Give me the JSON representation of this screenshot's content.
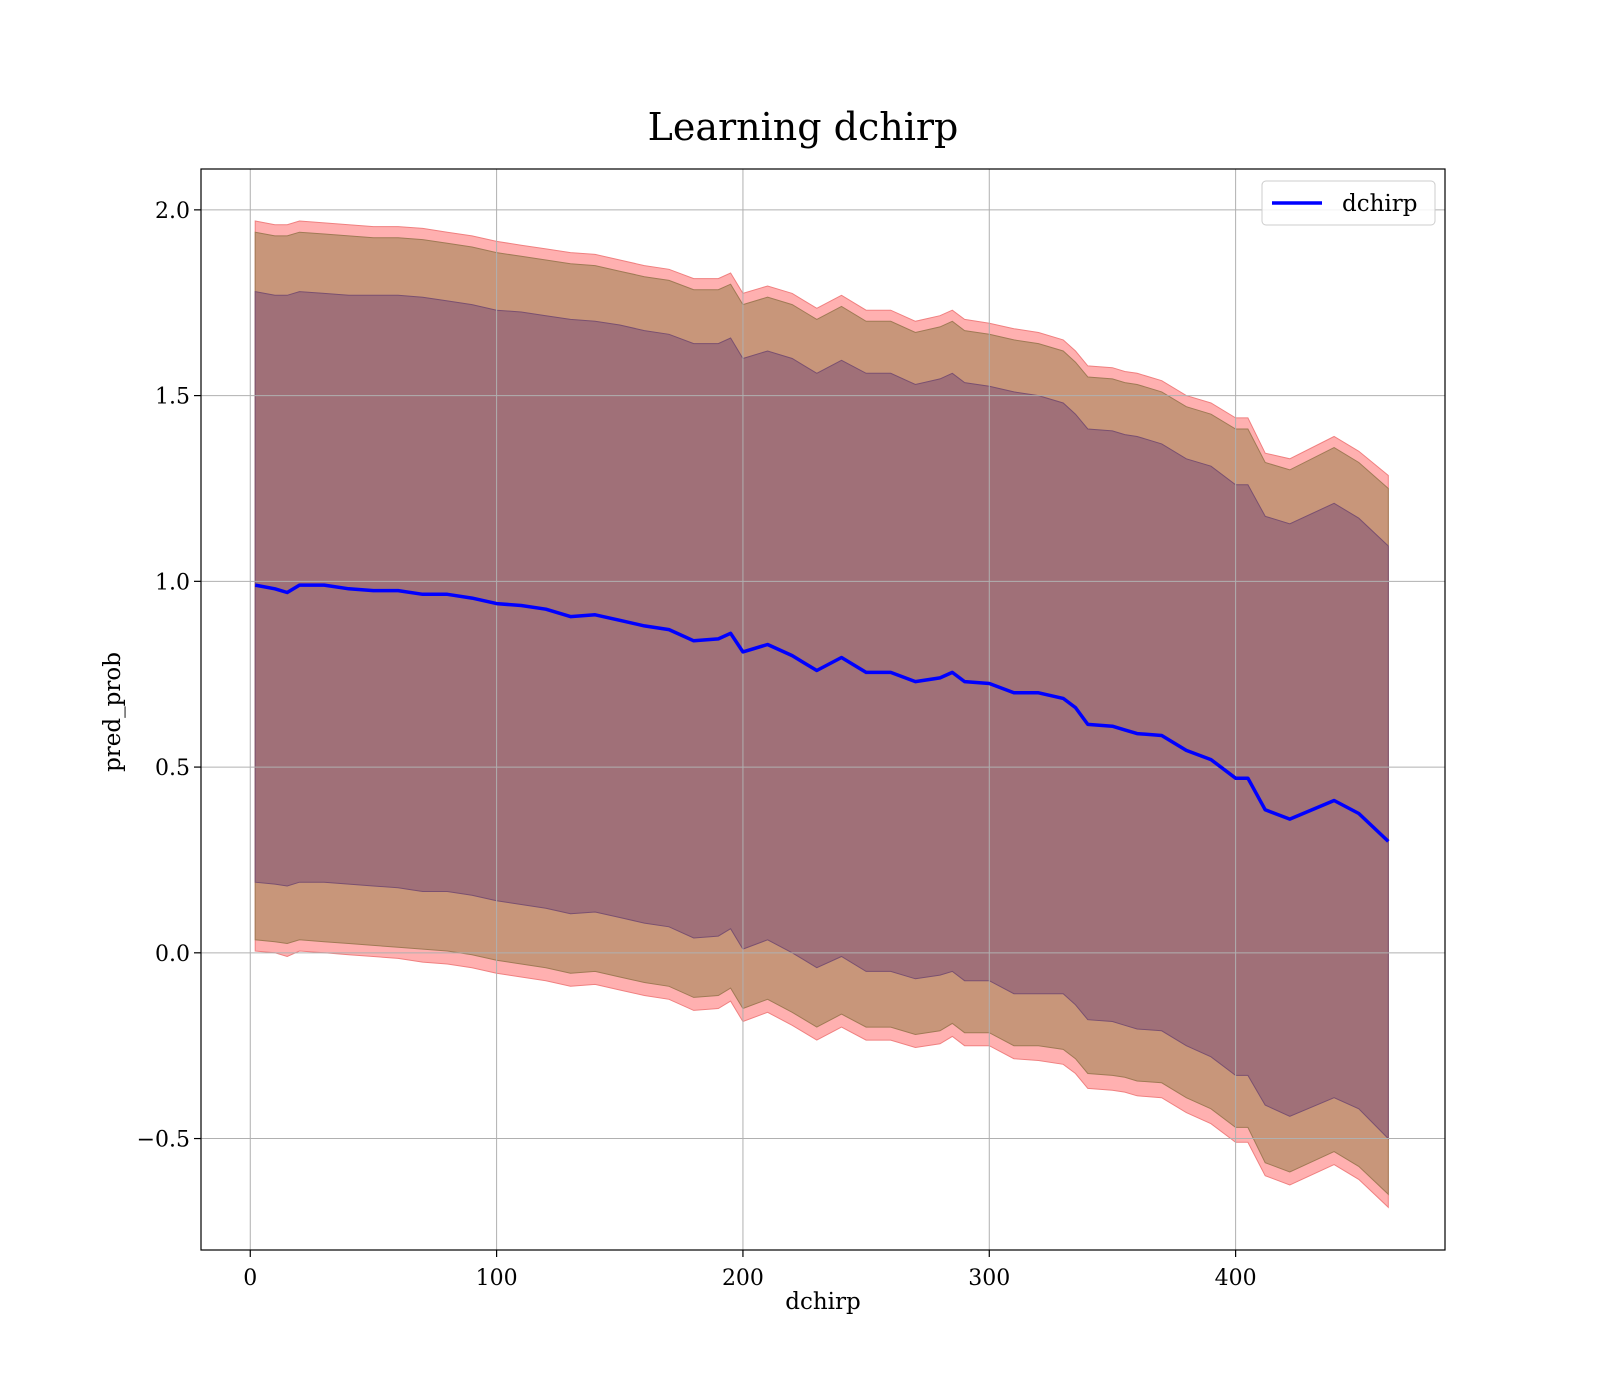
{
  "chart_data": {
    "type": "line",
    "title": "Learning dchirp",
    "xlabel": "dchirp",
    "ylabel": "pred_prob",
    "xlim": [
      -20,
      485
    ],
    "ylim": [
      -0.8,
      2.11
    ],
    "xticks": [
      0,
      100,
      200,
      300,
      400
    ],
    "xtick_labels": [
      "0",
      "100",
      "200",
      "300",
      "400"
    ],
    "yticks": [
      -0.5,
      0.0,
      0.5,
      1.0,
      1.5,
      2.0
    ],
    "ytick_labels": [
      "−0.5",
      "0.0",
      "0.5",
      "1.0",
      "1.5",
      "2.0"
    ],
    "grid": true,
    "legend": {
      "position": "top-right",
      "entries": [
        "dchirp"
      ]
    },
    "colors": {
      "line": "#0000ff",
      "band_outer": "#ffb0b0",
      "band_middle": "#c8967a",
      "band_inner": "#a07078",
      "grid": "#b0b0b0"
    },
    "x": [
      2,
      10,
      15,
      20,
      30,
      40,
      50,
      60,
      70,
      80,
      90,
      100,
      110,
      120,
      130,
      140,
      150,
      160,
      170,
      180,
      190,
      195,
      200,
      210,
      220,
      225,
      230,
      240,
      250,
      260,
      270,
      280,
      285,
      290,
      300,
      310,
      320,
      330,
      335,
      340,
      350,
      355,
      360,
      370,
      380,
      390,
      400,
      405,
      412,
      422,
      440,
      450,
      462
    ],
    "series": [
      {
        "name": "dchirp",
        "values": [
          0.99,
          0.98,
          0.97,
          0.99,
          0.99,
          0.98,
          0.975,
          0.975,
          0.965,
          0.965,
          0.955,
          0.94,
          0.935,
          0.925,
          0.905,
          0.91,
          0.895,
          0.88,
          0.87,
          0.84,
          0.845,
          0.86,
          0.81,
          0.83,
          0.8,
          0.78,
          0.76,
          0.795,
          0.755,
          0.755,
          0.73,
          0.74,
          0.755,
          0.73,
          0.725,
          0.7,
          0.7,
          0.685,
          0.66,
          0.615,
          0.61,
          0.6,
          0.59,
          0.585,
          0.545,
          0.52,
          0.47,
          0.47,
          0.385,
          0.36,
          0.41,
          0.375,
          0.3
        ],
        "mean_plus_1sd": [
          1.78,
          1.77,
          1.77,
          1.78,
          1.775,
          1.77,
          1.77,
          1.77,
          1.765,
          1.755,
          1.745,
          1.73,
          1.725,
          1.715,
          1.705,
          1.7,
          1.69,
          1.675,
          1.665,
          1.64,
          1.64,
          1.655,
          1.6,
          1.62,
          1.6,
          1.58,
          1.56,
          1.595,
          1.56,
          1.56,
          1.53,
          1.545,
          1.56,
          1.535,
          1.525,
          1.51,
          1.5,
          1.48,
          1.45,
          1.41,
          1.405,
          1.395,
          1.39,
          1.37,
          1.33,
          1.31,
          1.26,
          1.26,
          1.175,
          1.155,
          1.21,
          1.17,
          1.095
        ],
        "mean_minus_1sd": [
          0.19,
          0.185,
          0.18,
          0.19,
          0.19,
          0.185,
          0.18,
          0.175,
          0.165,
          0.165,
          0.155,
          0.14,
          0.13,
          0.12,
          0.105,
          0.11,
          0.095,
          0.08,
          0.07,
          0.04,
          0.045,
          0.065,
          0.01,
          0.035,
          0.0,
          -0.02,
          -0.04,
          -0.01,
          -0.05,
          -0.05,
          -0.07,
          -0.06,
          -0.05,
          -0.075,
          -0.075,
          -0.11,
          -0.11,
          -0.11,
          -0.14,
          -0.18,
          -0.185,
          -0.195,
          -0.205,
          -0.21,
          -0.25,
          -0.28,
          -0.33,
          -0.33,
          -0.41,
          -0.44,
          -0.39,
          -0.42,
          -0.5
        ],
        "mean_plus_2sd": [
          1.94,
          1.93,
          1.93,
          1.94,
          1.935,
          1.93,
          1.925,
          1.925,
          1.92,
          1.91,
          1.9,
          1.885,
          1.875,
          1.865,
          1.855,
          1.85,
          1.835,
          1.82,
          1.81,
          1.785,
          1.785,
          1.8,
          1.745,
          1.765,
          1.745,
          1.725,
          1.705,
          1.74,
          1.7,
          1.7,
          1.67,
          1.685,
          1.7,
          1.675,
          1.665,
          1.65,
          1.64,
          1.62,
          1.59,
          1.55,
          1.545,
          1.535,
          1.53,
          1.51,
          1.47,
          1.45,
          1.41,
          1.41,
          1.32,
          1.3,
          1.36,
          1.32,
          1.25
        ],
        "mean_minus_2sd": [
          0.035,
          0.03,
          0.025,
          0.035,
          0.03,
          0.025,
          0.02,
          0.015,
          0.01,
          0.005,
          -0.005,
          -0.02,
          -0.03,
          -0.04,
          -0.055,
          -0.05,
          -0.065,
          -0.08,
          -0.09,
          -0.12,
          -0.115,
          -0.095,
          -0.15,
          -0.125,
          -0.16,
          -0.18,
          -0.2,
          -0.165,
          -0.2,
          -0.2,
          -0.22,
          -0.21,
          -0.19,
          -0.215,
          -0.215,
          -0.25,
          -0.25,
          -0.26,
          -0.285,
          -0.325,
          -0.33,
          -0.335,
          -0.345,
          -0.35,
          -0.39,
          -0.42,
          -0.47,
          -0.47,
          -0.565,
          -0.59,
          -0.535,
          -0.575,
          -0.65
        ],
        "mean_plus_2_1sd": [
          1.97,
          1.96,
          1.96,
          1.97,
          1.965,
          1.96,
          1.955,
          1.955,
          1.95,
          1.94,
          1.93,
          1.915,
          1.905,
          1.895,
          1.885,
          1.88,
          1.865,
          1.85,
          1.84,
          1.815,
          1.815,
          1.83,
          1.775,
          1.795,
          1.775,
          1.755,
          1.735,
          1.77,
          1.73,
          1.73,
          1.7,
          1.715,
          1.73,
          1.705,
          1.695,
          1.68,
          1.67,
          1.65,
          1.62,
          1.58,
          1.575,
          1.565,
          1.56,
          1.54,
          1.5,
          1.48,
          1.44,
          1.44,
          1.345,
          1.33,
          1.39,
          1.35,
          1.285
        ],
        "mean_minus_2_1sd": [
          0.005,
          0.0,
          -0.01,
          0.005,
          0.0,
          -0.005,
          -0.01,
          -0.015,
          -0.025,
          -0.03,
          -0.04,
          -0.055,
          -0.065,
          -0.075,
          -0.09,
          -0.085,
          -0.1,
          -0.115,
          -0.125,
          -0.155,
          -0.15,
          -0.13,
          -0.185,
          -0.16,
          -0.195,
          -0.215,
          -0.235,
          -0.2,
          -0.235,
          -0.235,
          -0.255,
          -0.245,
          -0.225,
          -0.25,
          -0.25,
          -0.285,
          -0.29,
          -0.3,
          -0.325,
          -0.365,
          -0.37,
          -0.375,
          -0.385,
          -0.39,
          -0.43,
          -0.46,
          -0.51,
          -0.51,
          -0.6,
          -0.625,
          -0.57,
          -0.61,
          -0.685
        ]
      }
    ]
  }
}
